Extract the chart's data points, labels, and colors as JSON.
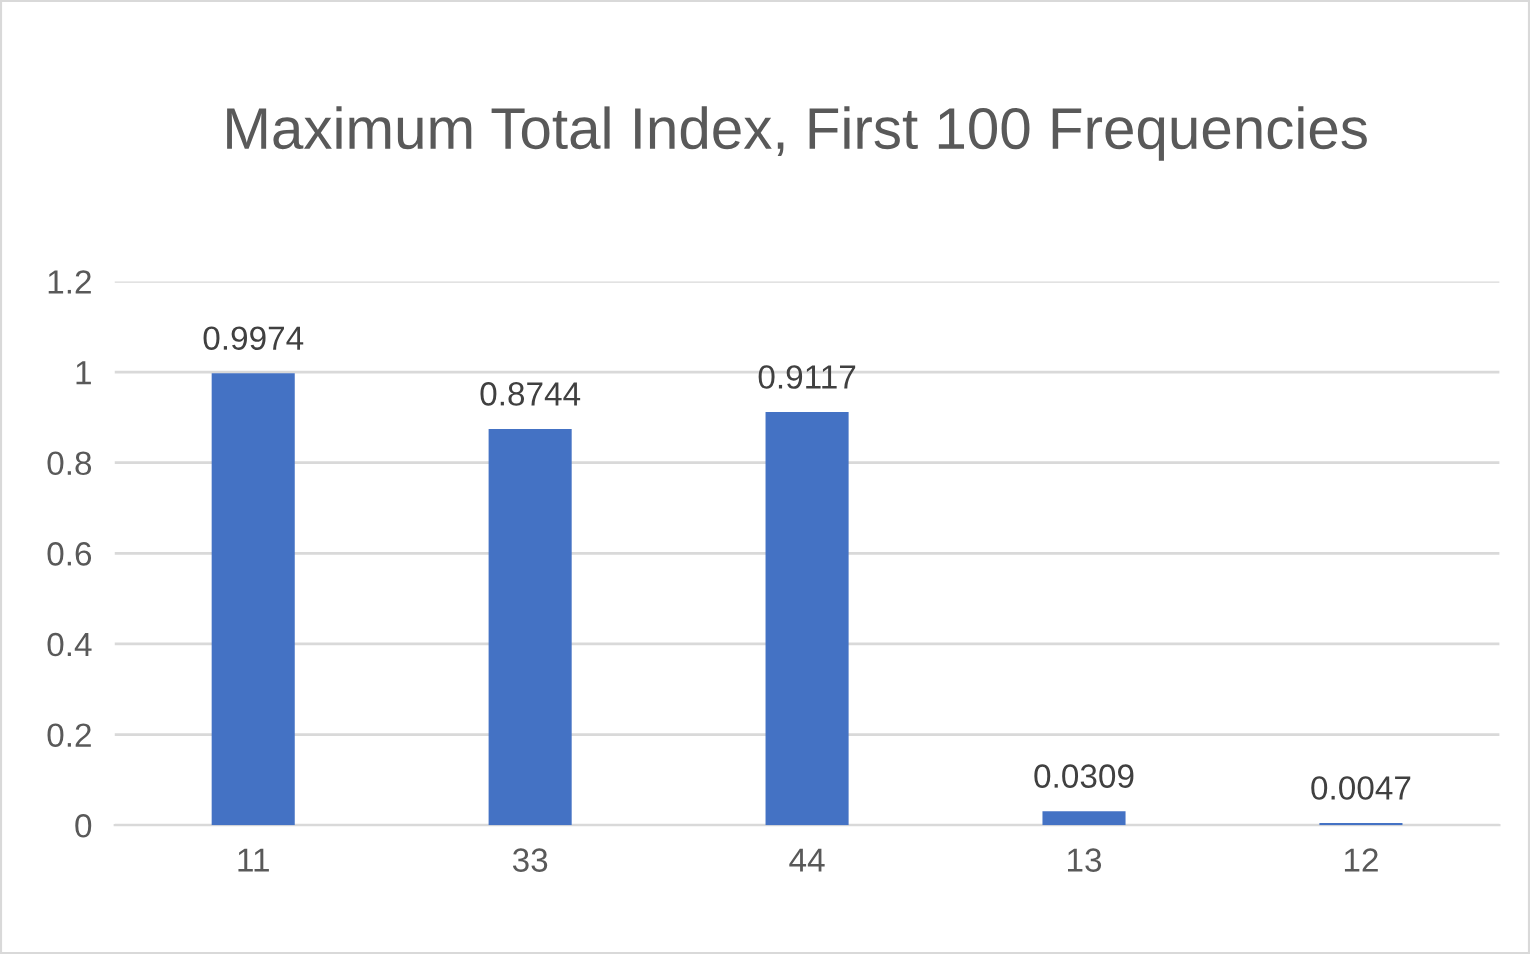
{
  "chart_data": {
    "type": "bar",
    "title": "Maximum Total Index, First 100 Frequencies",
    "categories": [
      "11",
      "33",
      "44",
      "13",
      "12"
    ],
    "values": [
      0.9974,
      0.8744,
      0.9117,
      0.0309,
      0.0047
    ],
    "color": "#4472c4",
    "ylim": [
      0,
      1.2
    ],
    "yticks": [
      0,
      0.2,
      0.4,
      0.6,
      0.8,
      1,
      1.2
    ],
    "grid": "y",
    "data_labels": true
  }
}
